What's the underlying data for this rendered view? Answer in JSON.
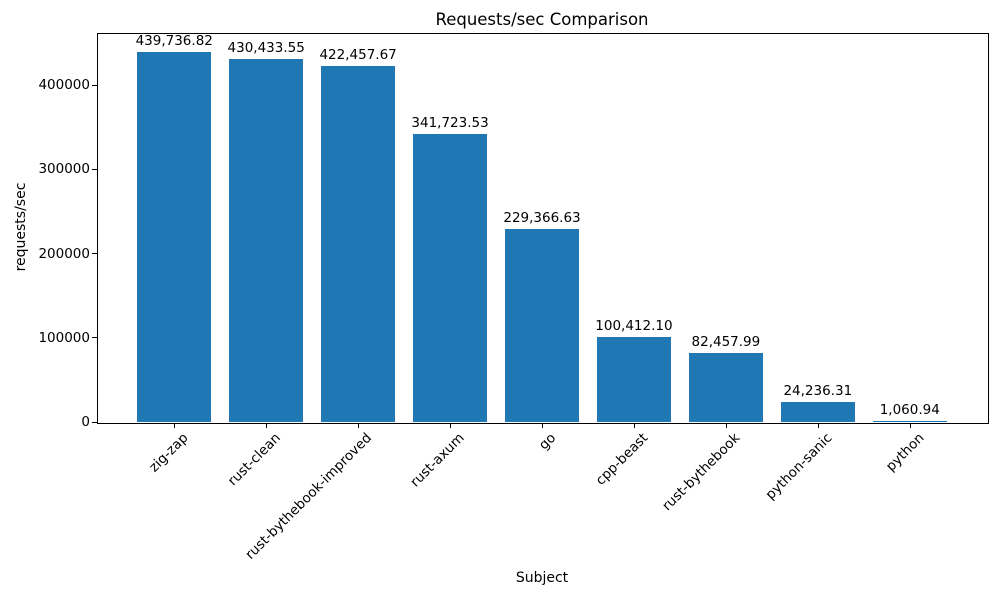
{
  "chart_data": {
    "type": "bar",
    "title": "Requests/sec Comparison",
    "xlabel": "Subject",
    "ylabel": "requests/sec",
    "categories": [
      "zig-zap",
      "rust-clean",
      "rust-bythebook-improved",
      "rust-axum",
      "go",
      "cpp-beast",
      "rust-bythebook",
      "python-sanic",
      "python"
    ],
    "values": [
      439736.82,
      430433.55,
      422457.67,
      341723.53,
      229366.63,
      100412.1,
      82457.99,
      24236.31,
      1060.94
    ],
    "bar_labels": [
      "439,736.82",
      "430,433.55",
      "422,457.67",
      "341,723.53",
      "229,366.63",
      "100,412.10",
      "82,457.99",
      "24,236.31",
      "1,060.94"
    ],
    "y_ticks": [
      0,
      100000,
      200000,
      300000,
      400000
    ],
    "y_tick_labels": [
      "0",
      "100000",
      "200000",
      "300000",
      "400000"
    ],
    "ylim": [
      0,
      461723.66
    ],
    "bar_color": "#1f77b4",
    "grid": false,
    "legend_position": "none",
    "x_tick_rotation": 45
  }
}
